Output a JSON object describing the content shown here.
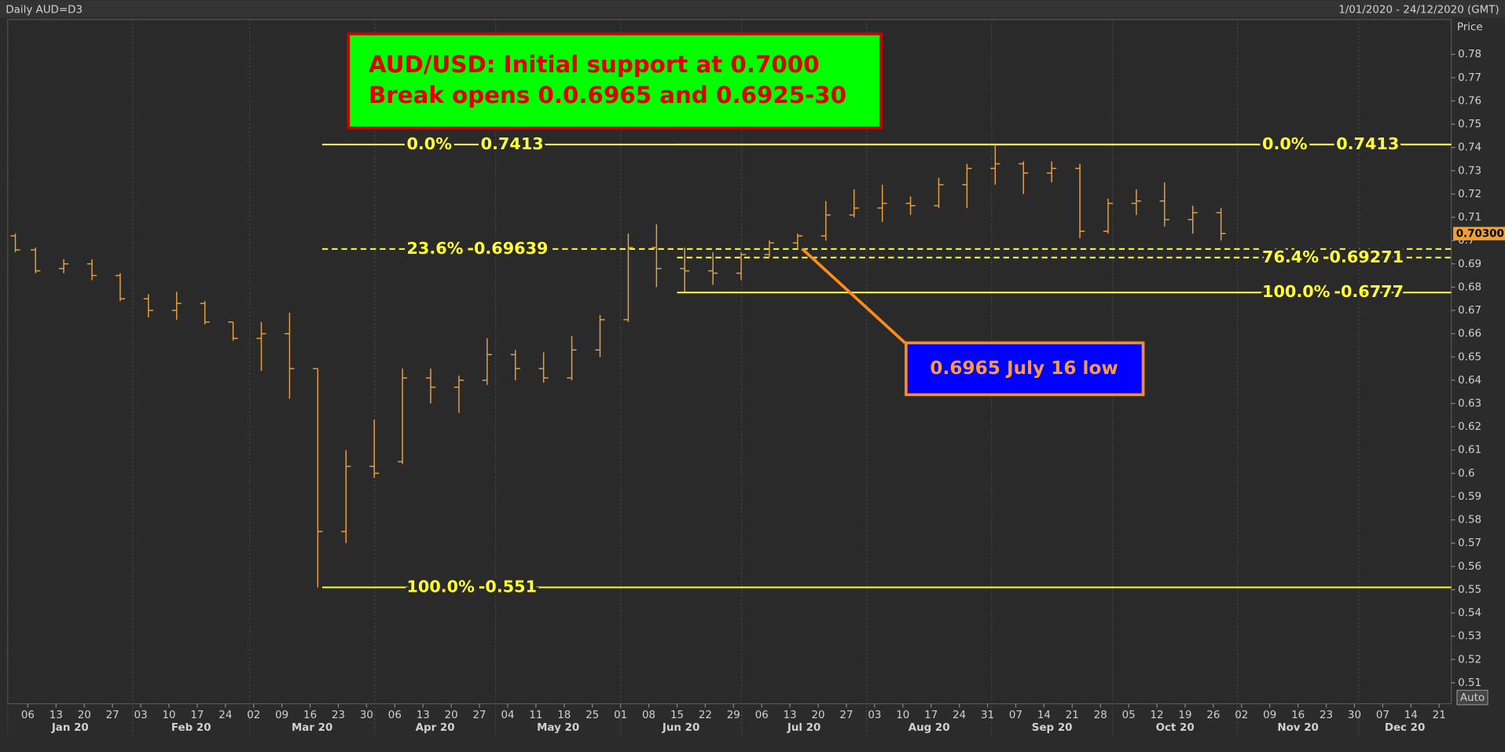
{
  "header": {
    "title": "Daily AUD=D3",
    "range": "1/01/2020 - 24/12/2020 (GMT)",
    "axis_title": "Price",
    "auto_button": "Auto"
  },
  "chart_data": {
    "type": "ohlc",
    "color": "#e8a040",
    "x": [
      "2020-01-01",
      "2020-01-06",
      "2020-01-13",
      "2020-01-20",
      "2020-01-27",
      "2020-02-03",
      "2020-02-10",
      "2020-02-17",
      "2020-02-24",
      "2020-03-02",
      "2020-03-09",
      "2020-03-16",
      "2020-03-23",
      "2020-03-30",
      "2020-04-06",
      "2020-04-13",
      "2020-04-20",
      "2020-04-27",
      "2020-05-04",
      "2020-05-11",
      "2020-05-18",
      "2020-05-25",
      "2020-06-01",
      "2020-06-08",
      "2020-06-15",
      "2020-06-22",
      "2020-06-29",
      "2020-07-06",
      "2020-07-13",
      "2020-07-20",
      "2020-07-27",
      "2020-08-03",
      "2020-08-10",
      "2020-08-17",
      "2020-08-24",
      "2020-08-31",
      "2020-09-07",
      "2020-09-14",
      "2020-09-21",
      "2020-09-28",
      "2020-10-05",
      "2020-10-12",
      "2020-10-19",
      "2020-10-26"
    ],
    "open": [
      0.702,
      0.696,
      0.688,
      0.69,
      0.685,
      0.675,
      0.67,
      0.673,
      0.665,
      0.658,
      0.66,
      0.645,
      0.575,
      0.603,
      0.605,
      0.641,
      0.637,
      0.64,
      0.651,
      0.645,
      0.641,
      0.653,
      0.666,
      0.697,
      0.688,
      0.687,
      0.686,
      0.694,
      0.699,
      0.702,
      0.711,
      0.714,
      0.716,
      0.715,
      0.724,
      0.731,
      0.733,
      0.729,
      0.731,
      0.704,
      0.716,
      0.717,
      0.709,
      0.712
    ],
    "high": [
      0.703,
      0.697,
      0.692,
      0.692,
      0.686,
      0.677,
      0.678,
      0.674,
      0.665,
      0.665,
      0.669,
      0.645,
      0.61,
      0.623,
      0.645,
      0.645,
      0.642,
      0.658,
      0.653,
      0.652,
      0.659,
      0.668,
      0.703,
      0.707,
      0.697,
      0.695,
      0.695,
      0.7,
      0.703,
      0.717,
      0.722,
      0.724,
      0.719,
      0.727,
      0.733,
      0.7413,
      0.734,
      0.734,
      0.733,
      0.718,
      0.722,
      0.725,
      0.715,
      0.714
    ],
    "low": [
      0.695,
      0.686,
      0.686,
      0.683,
      0.674,
      0.667,
      0.666,
      0.664,
      0.657,
      0.644,
      0.632,
      0.551,
      0.57,
      0.598,
      0.604,
      0.63,
      0.626,
      0.638,
      0.64,
      0.639,
      0.64,
      0.65,
      0.665,
      0.68,
      0.678,
      0.681,
      0.683,
      0.693,
      0.6965,
      0.7,
      0.71,
      0.708,
      0.711,
      0.714,
      0.714,
      0.724,
      0.72,
      0.725,
      0.701,
      0.703,
      0.711,
      0.706,
      0.703,
      0.7
    ],
    "close": [
      0.696,
      0.687,
      0.69,
      0.685,
      0.675,
      0.67,
      0.673,
      0.665,
      0.658,
      0.66,
      0.645,
      0.575,
      0.603,
      0.6,
      0.641,
      0.637,
      0.64,
      0.651,
      0.645,
      0.641,
      0.653,
      0.666,
      0.697,
      0.688,
      0.687,
      0.686,
      0.694,
      0.699,
      0.702,
      0.711,
      0.714,
      0.716,
      0.715,
      0.724,
      0.731,
      0.733,
      0.729,
      0.731,
      0.704,
      0.716,
      0.717,
      0.709,
      0.712,
      0.703
    ],
    "xlim": [
      "2020-01-01",
      "2020-12-24"
    ],
    "xticks": [
      {
        "value": "2020-01-06",
        "label": "06"
      },
      {
        "value": "2020-01-13",
        "label": "13"
      },
      {
        "value": "2020-01-20",
        "label": "20"
      },
      {
        "value": "2020-01-27",
        "label": "27"
      },
      {
        "value": "2020-02-03",
        "label": "03"
      },
      {
        "value": "2020-02-10",
        "label": "10"
      },
      {
        "value": "2020-02-17",
        "label": "17"
      },
      {
        "value": "2020-02-24",
        "label": "24"
      },
      {
        "value": "2020-03-02",
        "label": "02"
      },
      {
        "value": "2020-03-09",
        "label": "09"
      },
      {
        "value": "2020-03-16",
        "label": "16"
      },
      {
        "value": "2020-03-23",
        "label": "23"
      },
      {
        "value": "2020-03-30",
        "label": "30"
      },
      {
        "value": "2020-04-06",
        "label": "06"
      },
      {
        "value": "2020-04-13",
        "label": "13"
      },
      {
        "value": "2020-04-20",
        "label": "20"
      },
      {
        "value": "2020-04-27",
        "label": "27"
      },
      {
        "value": "2020-05-04",
        "label": "04"
      },
      {
        "value": "2020-05-11",
        "label": "11"
      },
      {
        "value": "2020-05-18",
        "label": "18"
      },
      {
        "value": "2020-05-25",
        "label": "25"
      },
      {
        "value": "2020-06-01",
        "label": "01"
      },
      {
        "value": "2020-06-08",
        "label": "08"
      },
      {
        "value": "2020-06-15",
        "label": "15"
      },
      {
        "value": "2020-06-22",
        "label": "22"
      },
      {
        "value": "2020-06-29",
        "label": "29"
      },
      {
        "value": "2020-07-06",
        "label": "06"
      },
      {
        "value": "2020-07-13",
        "label": "13"
      },
      {
        "value": "2020-07-20",
        "label": "20"
      },
      {
        "value": "2020-07-27",
        "label": "27"
      },
      {
        "value": "2020-08-03",
        "label": "03"
      },
      {
        "value": "2020-08-10",
        "label": "10"
      },
      {
        "value": "2020-08-17",
        "label": "17"
      },
      {
        "value": "2020-08-24",
        "label": "24"
      },
      {
        "value": "2020-08-31",
        "label": "31"
      },
      {
        "value": "2020-09-07",
        "label": "07"
      },
      {
        "value": "2020-09-14",
        "label": "14"
      },
      {
        "value": "2020-09-21",
        "label": "21"
      },
      {
        "value": "2020-09-28",
        "label": "28"
      },
      {
        "value": "2020-10-05",
        "label": "05"
      },
      {
        "value": "2020-10-12",
        "label": "12"
      },
      {
        "value": "2020-10-19",
        "label": "19"
      },
      {
        "value": "2020-10-26",
        "label": "26"
      },
      {
        "value": "2020-11-02",
        "label": "02"
      },
      {
        "value": "2020-11-09",
        "label": "09"
      },
      {
        "value": "2020-11-16",
        "label": "16"
      },
      {
        "value": "2020-11-23",
        "label": "23"
      },
      {
        "value": "2020-11-30",
        "label": "30"
      },
      {
        "value": "2020-12-07",
        "label": "07"
      },
      {
        "value": "2020-12-14",
        "label": "14"
      },
      {
        "value": "2020-12-21",
        "label": "21"
      }
    ],
    "month_labels": [
      {
        "value": "2020-01",
        "label": "Jan 20"
      },
      {
        "value": "2020-02",
        "label": "Feb 20"
      },
      {
        "value": "2020-03",
        "label": "Mar 20"
      },
      {
        "value": "2020-04",
        "label": "Apr 20"
      },
      {
        "value": "2020-05",
        "label": "May 20"
      },
      {
        "value": "2020-06",
        "label": "Jun 20"
      },
      {
        "value": "2020-07",
        "label": "Jul 20"
      },
      {
        "value": "2020-08",
        "label": "Aug 20"
      },
      {
        "value": "2020-09",
        "label": "Sep 20"
      },
      {
        "value": "2020-10",
        "label": "Oct 20"
      },
      {
        "value": "2020-11",
        "label": "Nov 20"
      },
      {
        "value": "2020-12",
        "label": "Dec 20"
      }
    ],
    "ylim": [
      0.501,
      0.795
    ],
    "yticks": [
      0.51,
      0.52,
      0.53,
      0.54,
      0.55,
      0.56,
      0.57,
      0.58,
      0.59,
      0.6,
      0.61,
      0.62,
      0.63,
      0.64,
      0.65,
      0.66,
      0.67,
      0.68,
      0.69,
      0.7,
      0.71,
      0.72,
      0.73,
      0.74,
      0.75,
      0.76,
      0.77,
      0.78
    ],
    "last_price": {
      "value": 0.703,
      "label": "0.70300"
    },
    "fib_levels": [
      {
        "level": "0.0%",
        "value": 0.7413,
        "label": "0.7413",
        "start": "2020-03-19",
        "style": "solid"
      },
      {
        "level": "23.6%",
        "value": 0.69639,
        "label": "-0.69639",
        "start": "2020-03-19",
        "style": "dashed"
      },
      {
        "level": "100.0%",
        "value": 0.551,
        "label": "-0.551",
        "start": "2020-03-19",
        "style": "solid"
      },
      {
        "level": "0.0%",
        "value": 0.7413,
        "label": "0.7413",
        "start": "2020-06-15",
        "style": "solid"
      },
      {
        "level": "76.4%",
        "value": 0.69271,
        "label": "-0.69271",
        "start": "2020-06-15",
        "style": "dashed"
      },
      {
        "level": "100.0%",
        "value": 0.6777,
        "label": "-0.6777",
        "start": "2020-06-15",
        "style": "solid"
      }
    ],
    "annotations": {
      "headline": [
        "AUD/USD: Initial support at 0.7000",
        "Break opens 0.0.6965 and 0.6925-30"
      ],
      "callout": {
        "text": "0.6965 July 16 low",
        "x": "2020-07-16",
        "y": 0.6965
      }
    }
  }
}
